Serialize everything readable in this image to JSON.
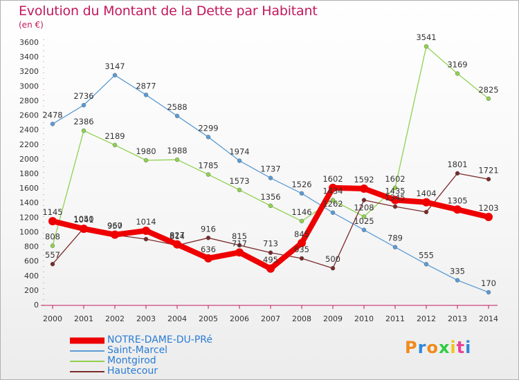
{
  "header": {
    "title": "Evolution du Montant de la Dette par Habitant",
    "unit": "(en €)"
  },
  "logo": {
    "text": "Proxiti",
    "letter_colors": [
      "#f08a1c",
      "#2e86de",
      "#f08a1c",
      "#2ecc40",
      "#f0c419",
      "#e84393",
      "#2e86de"
    ]
  },
  "chart_data": {
    "type": "line",
    "title": "Evolution du Montant de la Dette par Habitant",
    "ylabel": "(en €)",
    "xlabel": "",
    "x": [
      2000,
      2001,
      2002,
      2003,
      2004,
      2005,
      2006,
      2007,
      2008,
      2009,
      2010,
      2011,
      2012,
      2013,
      2014
    ],
    "ylim": [
      0,
      3600
    ],
    "yticks": [
      0,
      200,
      400,
      600,
      800,
      1000,
      1200,
      1400,
      1600,
      1800,
      2000,
      2200,
      2400,
      2600,
      2800,
      3000,
      3200,
      3400,
      3600
    ],
    "grid": false,
    "legend_position": "bottom-left",
    "series": [
      {
        "name": "NOTRE-DAME-DU-PRé",
        "color": "#ee0000",
        "emphasis": true,
        "values": [
          1145,
          1041,
          960,
          1014,
          827,
          636,
          717,
          495,
          845,
          1602,
          1592,
          1435,
          1404,
          1305,
          1203
        ],
        "labels": [
          "1145",
          "1041",
          "960",
          "1014",
          "827",
          "636",
          "717",
          "495",
          "845",
          "1602",
          "1592",
          "1435",
          "1404",
          "1305",
          "1203"
        ]
      },
      {
        "name": "Saint-Marcel",
        "color": "#5b9bd5",
        "emphasis": false,
        "values": [
          2478,
          2736,
          3147,
          2877,
          2588,
          2299,
          1974,
          1737,
          1526,
          1262,
          1025,
          789,
          555,
          335,
          170
        ],
        "labels": [
          "2478",
          "2736",
          "3147",
          "2877",
          "2588",
          "2299",
          "1974",
          "1737",
          "1526",
          "1262",
          "1025",
          "789",
          "555",
          "335",
          "170"
        ]
      },
      {
        "name": "Montgirod",
        "color": "#8fd14f",
        "emphasis": false,
        "values": [
          808,
          2386,
          2189,
          1980,
          1988,
          1785,
          1573,
          1356,
          1146,
          1434,
          1208,
          1602,
          3541,
          3169,
          2825
        ],
        "labels": [
          "808",
          "2386",
          "2189",
          "1980",
          "1988",
          "1785",
          "1573",
          "1356",
          "1146",
          "1434",
          "1208",
          "1602",
          "3541",
          "3169",
          "2825"
        ]
      },
      {
        "name": "Hautecour",
        "color": "#7a2a2a",
        "emphasis": false,
        "values": [
          557,
          1050,
          957,
          899,
          814,
          916,
          815,
          713,
          635,
          500,
          1434,
          1345,
          1271,
          1801,
          1721
        ],
        "labels": [
          "557",
          "1050",
          "957",
          "",
          "814",
          "916",
          "815",
          "713",
          "635",
          "500",
          "",
          "1345",
          "",
          "1801",
          "1721"
        ]
      }
    ]
  }
}
